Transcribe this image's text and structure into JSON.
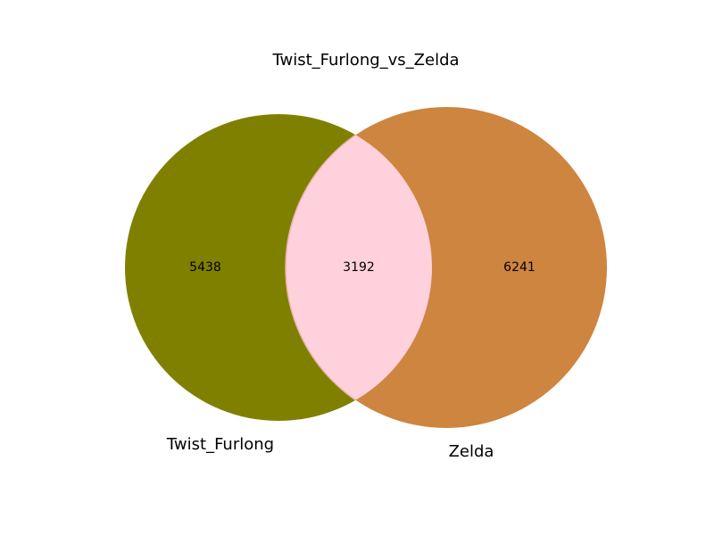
{
  "chart_data": {
    "type": "venn",
    "title": "Twist_Furlong_vs_Zelda",
    "sets": [
      {
        "name": "Twist_Furlong",
        "only_count": "5438",
        "color": "#808000"
      },
      {
        "name": "Zelda",
        "only_count": "6241",
        "color": "#cd853f"
      }
    ],
    "intersection": {
      "count": "3192",
      "color": "#ffd1dc"
    }
  }
}
